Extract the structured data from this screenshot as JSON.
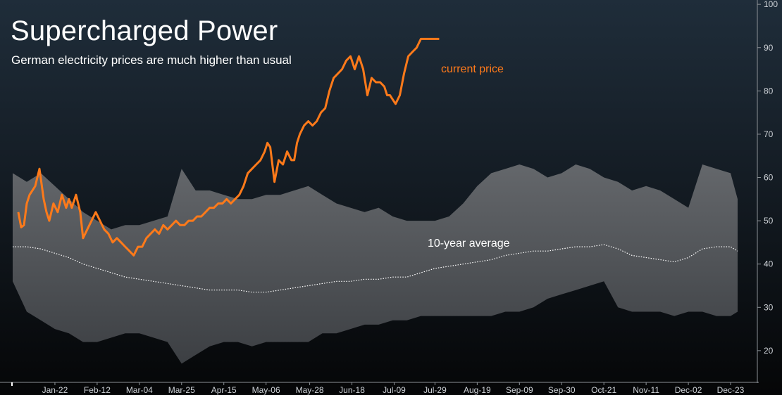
{
  "title": "Supercharged Power",
  "subtitle": "German electricity prices are much higher than usual",
  "colors": {
    "current": "#ff7a1a",
    "band": "#5a5d61",
    "average": "#ffffff",
    "axis": "#8c9196",
    "text": "#cfd3d8"
  },
  "chart_data": {
    "type": "line",
    "title": "Supercharged Power",
    "subtitle": "German electricity prices are much higher than usual",
    "xlabel": "",
    "ylabel": "",
    "ylim": [
      13,
      101
    ],
    "yticks": [
      20,
      30,
      40,
      50,
      60,
      70,
      80,
      90,
      100
    ],
    "x_range": [
      0,
      51
    ],
    "xticks": [
      {
        "label": "Jan-22",
        "x": 3
      },
      {
        "label": "Feb-12",
        "x": 6
      },
      {
        "label": "Mar-04",
        "x": 9
      },
      {
        "label": "Mar-25",
        "x": 12
      },
      {
        "label": "Apr-15",
        "x": 15
      },
      {
        "label": "May-06",
        "x": 18
      },
      {
        "label": "May-28",
        "x": 21.1
      },
      {
        "label": "Jun-18",
        "x": 24.1
      },
      {
        "label": "Jul-09",
        "x": 27.1
      },
      {
        "label": "Jul-29",
        "x": 30
      },
      {
        "label": "Aug-19",
        "x": 33
      },
      {
        "label": "Sep-09",
        "x": 36
      },
      {
        "label": "Sep-30",
        "x": 39
      },
      {
        "label": "Oct-21",
        "x": 42
      },
      {
        "label": "Nov-11",
        "x": 45
      },
      {
        "label": "Dec-02",
        "x": 48
      },
      {
        "label": "Dec-23",
        "x": 51
      }
    ],
    "annotations": [
      {
        "text": "current price",
        "series": "current"
      },
      {
        "text": "10-year average",
        "series": "average"
      }
    ],
    "series": [
      {
        "name": "current price",
        "x": [
          0.4,
          0.6,
          0.8,
          1.0,
          1.2,
          1.6,
          1.9,
          2.2,
          2.4,
          2.6,
          2.9,
          3.2,
          3.5,
          3.8,
          4.0,
          4.2,
          4.5,
          4.8,
          5.0,
          5.3,
          5.6,
          5.9,
          6.2,
          6.5,
          6.8,
          7.1,
          7.4,
          7.7,
          8.0,
          8.3,
          8.6,
          8.9,
          9.2,
          9.5,
          9.8,
          10.1,
          10.4,
          10.7,
          11.0,
          11.3,
          11.6,
          11.9,
          12.2,
          12.5,
          12.8,
          13.1,
          13.4,
          13.7,
          14.0,
          14.3,
          14.6,
          14.9,
          15.2,
          15.5,
          15.8,
          16.1,
          16.4,
          16.7,
          17.0,
          17.3,
          17.6,
          17.9,
          18.1,
          18.3,
          18.6,
          18.9,
          19.2,
          19.5,
          19.8,
          20.0,
          20.2,
          20.4,
          20.7,
          21.0,
          21.3,
          21.6,
          21.9,
          22.2,
          22.5,
          22.8,
          23.1,
          23.4,
          23.7,
          24.0,
          24.3,
          24.6,
          24.9,
          25.2,
          25.5,
          25.8,
          26.1,
          26.4,
          26.6,
          26.8,
          27.0,
          27.2,
          27.5,
          27.8,
          28.1,
          28.4,
          28.7,
          29.0,
          29.3,
          29.6,
          29.9,
          30.1,
          30.3
        ],
        "values": [
          52,
          48.5,
          49,
          54,
          56,
          58,
          62,
          55,
          52,
          50,
          54,
          52,
          56,
          53,
          55,
          53,
          56,
          52,
          46,
          48,
          50,
          52,
          50,
          48,
          47,
          45,
          46,
          45,
          44,
          43,
          42,
          44,
          44,
          46,
          47,
          48,
          47,
          49,
          48,
          49,
          50,
          49,
          49,
          50,
          50,
          51,
          51,
          52,
          53,
          53,
          54,
          54,
          55,
          54,
          55,
          56,
          58,
          61,
          62,
          63,
          64,
          66,
          68,
          67,
          59,
          64,
          63,
          66,
          64,
          64,
          68,
          70,
          72,
          73,
          72,
          73,
          75,
          76,
          80,
          83,
          84,
          85,
          87,
          88,
          85,
          88,
          85,
          79,
          83,
          82,
          82,
          81,
          79,
          79,
          78,
          77,
          79,
          84,
          88,
          89,
          90,
          92,
          92,
          92,
          92,
          92,
          92
        ],
        "color": "#ff7a1a"
      },
      {
        "name": "10-year average",
        "x": [
          0,
          1,
          2,
          3,
          4,
          5,
          6,
          7,
          8,
          9,
          10,
          11,
          12,
          13,
          14,
          15,
          16,
          17,
          18,
          19,
          20,
          21,
          22,
          23,
          24,
          25,
          26,
          27,
          28,
          29,
          30,
          31,
          32,
          33,
          34,
          35,
          36,
          37,
          38,
          39,
          40,
          41,
          42,
          43,
          44,
          45,
          46,
          47,
          48,
          49,
          50,
          51,
          51.5
        ],
        "values": [
          44,
          44,
          43.5,
          42.5,
          41.5,
          40,
          39,
          38,
          37,
          36.5,
          36,
          35.5,
          35,
          34.5,
          34,
          34,
          34,
          33.5,
          33.5,
          34,
          34.5,
          35,
          35.5,
          36,
          36,
          36.5,
          36.5,
          37,
          37,
          38,
          39,
          39.5,
          40,
          40.5,
          41,
          42,
          42.5,
          43,
          43,
          43.5,
          44,
          44,
          44.5,
          43.5,
          42,
          41.5,
          41,
          40.5,
          41.5,
          43.5,
          44,
          44,
          43
        ],
        "color": "#ffffff",
        "style": "dotted"
      },
      {
        "name": "10-year range (max)",
        "x": [
          0,
          1,
          2,
          3,
          4,
          5,
          6,
          7,
          8,
          9,
          10,
          11,
          12,
          13,
          14,
          15,
          16,
          17,
          18,
          19,
          20,
          21,
          22,
          23,
          24,
          25,
          26,
          27,
          28,
          29,
          30,
          31,
          32,
          33,
          34,
          35,
          36,
          37,
          38,
          39,
          40,
          41,
          42,
          43,
          44,
          45,
          46,
          47,
          48,
          49,
          50,
          51,
          51.5
        ],
        "values": [
          61,
          59,
          61,
          58,
          55,
          52,
          50,
          48,
          49,
          49,
          50,
          51,
          62,
          57,
          57,
          56,
          55,
          55,
          56,
          56,
          57,
          58,
          56,
          54,
          53,
          52,
          53,
          51,
          50,
          50,
          50,
          51,
          54,
          58,
          61,
          62,
          63,
          62,
          60,
          61,
          63,
          62,
          60,
          59,
          57,
          58,
          57,
          55,
          53,
          63,
          62,
          61,
          55
        ],
        "color": "#5a5d61"
      },
      {
        "name": "10-year range (min)",
        "x": [
          0,
          1,
          2,
          3,
          4,
          5,
          6,
          7,
          8,
          9,
          10,
          11,
          12,
          13,
          14,
          15,
          16,
          17,
          18,
          19,
          20,
          21,
          22,
          23,
          24,
          25,
          26,
          27,
          28,
          29,
          30,
          31,
          32,
          33,
          34,
          35,
          36,
          37,
          38,
          39,
          40,
          41,
          42,
          43,
          44,
          45,
          46,
          47,
          48,
          49,
          50,
          51,
          51.5
        ],
        "values": [
          36,
          29,
          27,
          25,
          24,
          22,
          22,
          23,
          24,
          24,
          23,
          22,
          17,
          19,
          21,
          22,
          22,
          21,
          22,
          22,
          22,
          22,
          24,
          24,
          25,
          26,
          26,
          27,
          27,
          28,
          28,
          28,
          28,
          28,
          28,
          29,
          29,
          30,
          32,
          33,
          34,
          35,
          36,
          30,
          29,
          29,
          29,
          28,
          29,
          29,
          28,
          28,
          29
        ],
        "color": "#5a5d61"
      }
    ]
  }
}
